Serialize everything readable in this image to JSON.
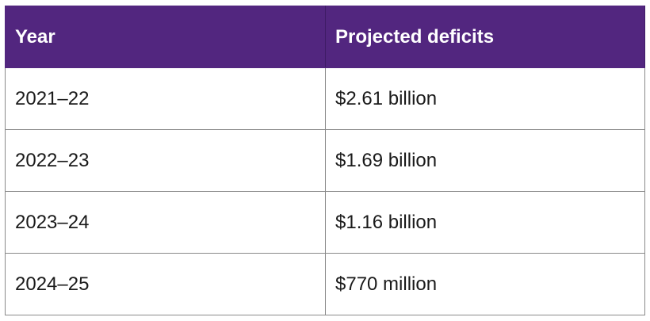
{
  "table": {
    "headers": [
      "Year",
      "Projected deficits"
    ],
    "rows": [
      [
        "2021–22",
        "$2.61 billion"
      ],
      [
        "2022–23",
        "$1.69 billion"
      ],
      [
        "2023–24",
        "$1.16 billion"
      ],
      [
        "2024–25",
        "$770 million"
      ]
    ]
  },
  "colors": {
    "header_bg": "#52267f",
    "header_text": "#ffffff",
    "border": "#8a8a8a"
  }
}
